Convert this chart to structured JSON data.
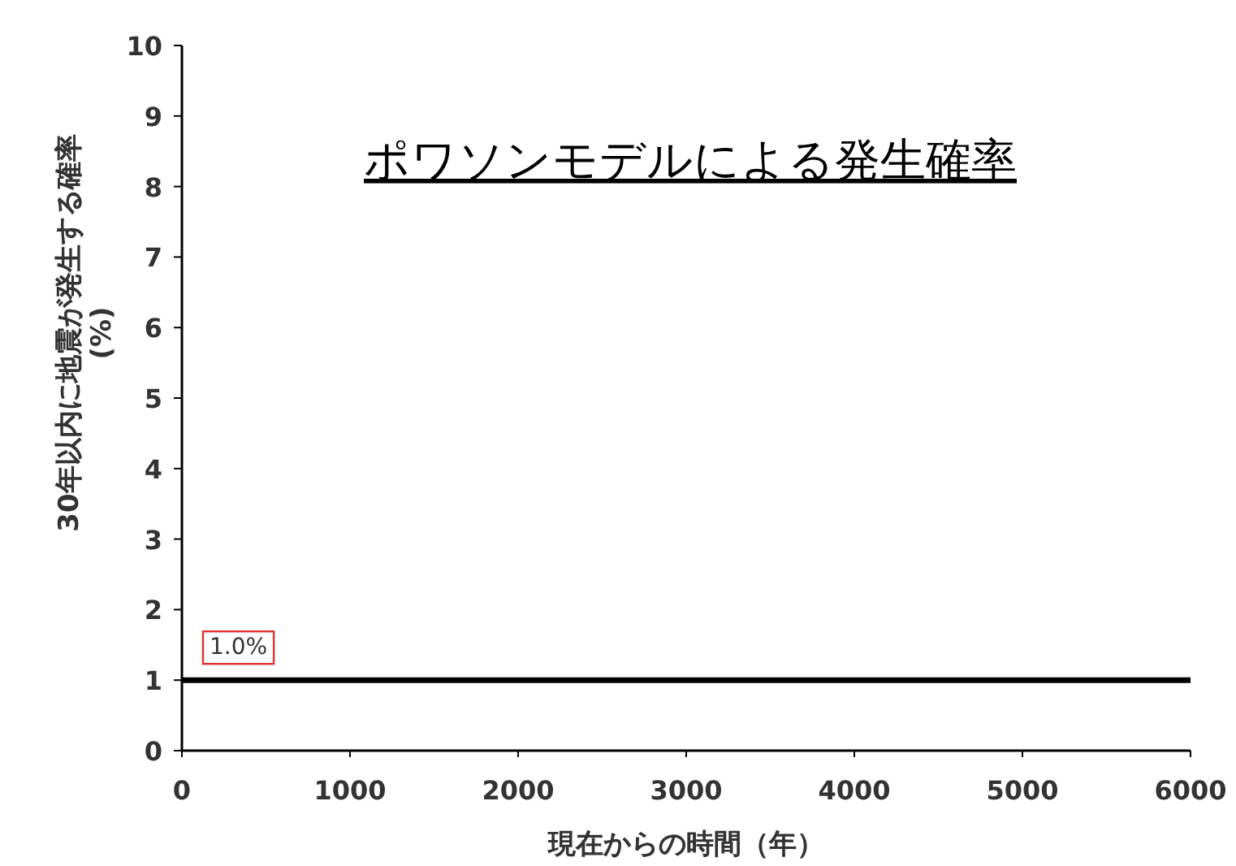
{
  "chart_data": {
    "type": "line",
    "title": "ポワソンモデルによる発生確率",
    "xlabel": "現在からの時間（年）",
    "ylabel": "30年以内に地震が発生する確率\n(%)",
    "x": [
      0,
      6000
    ],
    "series": [
      {
        "color": "#000000",
        "values": [
          1,
          1
        ]
      }
    ],
    "xlim": [
      0,
      6000
    ],
    "xticks": [
      0,
      1000,
      2000,
      3000,
      4000,
      5000,
      6000
    ],
    "ylim": [
      0,
      10
    ],
    "yticks": [
      0,
      1,
      2,
      3,
      4,
      5,
      6,
      7,
      8,
      9,
      10
    ],
    "annotations": [
      {
        "text": "1.0%",
        "x": 0,
        "y": 1
      }
    ],
    "marker": "none",
    "line_style": "solid"
  }
}
